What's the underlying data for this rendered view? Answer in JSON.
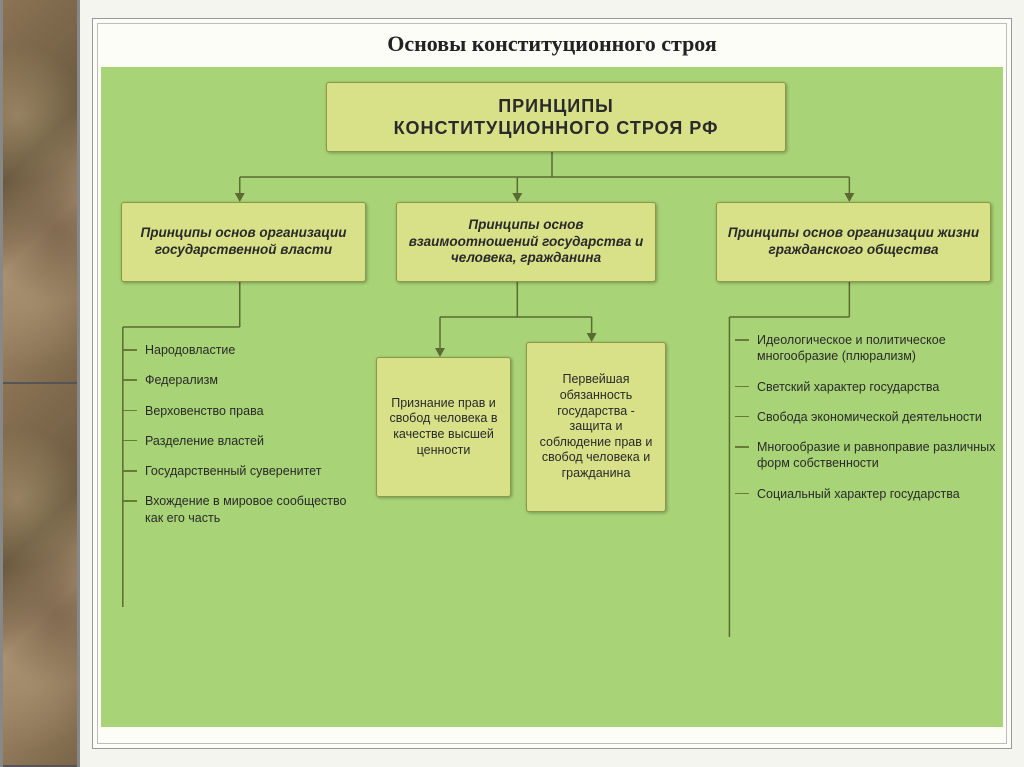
{
  "page": {
    "title": "Основы конституционного строя"
  },
  "diagram": {
    "main": "ПРИНЦИПЫ\nКОНСТИТУЦИОННОГО СТРОЯ РФ",
    "branches": [
      {
        "label": "Принципы основ организации государственной власти"
      },
      {
        "label": "Принципы основ взаимоотношений государства и человека, гражданина"
      },
      {
        "label": "Принципы основ организации жизни гражданского общества"
      }
    ],
    "left_list": [
      "Народовластие",
      "Федерализм",
      "Верховенство права",
      "Разделение властей",
      "Государственный суверенитет",
      "Вхождение в мировое сообщество как его часть"
    ],
    "center_boxes": [
      "Признание прав и свобод человека в качестве высшей ценности",
      "Первейшая обязанность государства - защита и соблюдение прав и свобод человека и гражданина"
    ],
    "right_list": [
      "Идеологическое и политическое многообразие (плюрализм)",
      "Светский характер государства",
      "Свобода экономической деятельности",
      "Многообразие и равноправие различных форм собственности",
      "Социальный характер государства"
    ]
  },
  "style": {
    "bg_color": "#a8d376",
    "box_fill": "#d8e088",
    "box_border": "#8a9848",
    "connector_color": "#5a6a30",
    "title_fontsize": 22,
    "main_box_fontsize": 18,
    "sub_box_fontsize": 13.5,
    "leaf_fontsize": 12.5
  }
}
